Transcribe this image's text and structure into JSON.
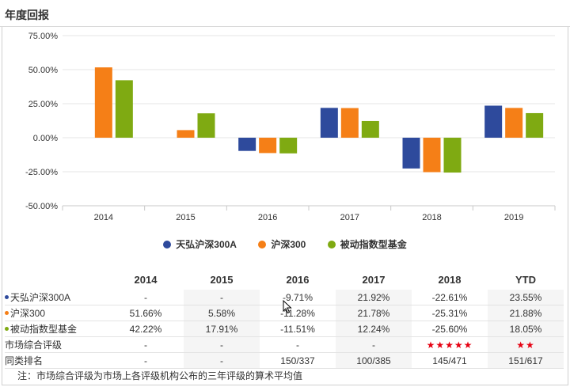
{
  "header": {
    "title": "年度回报"
  },
  "chart_data": {
    "type": "bar",
    "categories": [
      "2014",
      "2015",
      "2016",
      "2017",
      "2018",
      "2019"
    ],
    "series": [
      {
        "name": "天弘沪深300A",
        "color": "#2e4a9c",
        "values": [
          null,
          null,
          -9.71,
          21.92,
          -22.61,
          23.55
        ]
      },
      {
        "name": "沪深300",
        "color": "#f57f17",
        "values": [
          51.66,
          5.58,
          -11.28,
          21.78,
          -25.31,
          21.88
        ]
      },
      {
        "name": "被动指数型基金",
        "color": "#7faa12",
        "values": [
          42.22,
          17.91,
          -11.51,
          12.24,
          -25.6,
          18.05
        ]
      }
    ],
    "yticks": [
      "75.00%",
      "50.00%",
      "25.00%",
      "0.00%",
      "-25.00%",
      "-50.00%"
    ],
    "ytick_values": [
      75,
      50,
      25,
      0,
      -25,
      -50
    ],
    "ylim": [
      -50,
      75
    ],
    "grid": "horizontal",
    "legend_position": "bottom"
  },
  "table": {
    "columns": [
      "2014",
      "2015",
      "2016",
      "2017",
      "2018",
      "YTD"
    ],
    "rows": [
      {
        "label": "天弘沪深300A",
        "bullet_color": "#2e4a9c",
        "cells": [
          "-",
          "-",
          "-9.71%",
          "21.92%",
          "-22.61%",
          "23.55%"
        ]
      },
      {
        "label": "沪深300",
        "bullet_color": "#f57f17",
        "cells": [
          "51.66%",
          "5.58%",
          "-11.28%",
          "21.78%",
          "-25.31%",
          "21.88%"
        ]
      },
      {
        "label": "被动指数型基金",
        "bullet_color": "#7faa12",
        "cells": [
          "42.22%",
          "17.91%",
          "-11.51%",
          "12.24%",
          "-25.60%",
          "18.05%"
        ]
      },
      {
        "label": "市场综合评级",
        "cells": [
          "-",
          "-",
          "-",
          "-",
          "★★★★★",
          "★★"
        ]
      },
      {
        "label": "同类排名",
        "cells": [
          "-",
          "-",
          "150/337",
          "100/385",
          "145/471",
          "151/617"
        ]
      }
    ],
    "star_color": "#e60012"
  },
  "note": "注：市场综合评级为市场上各评级机构公布的三年评级的算术平均值"
}
